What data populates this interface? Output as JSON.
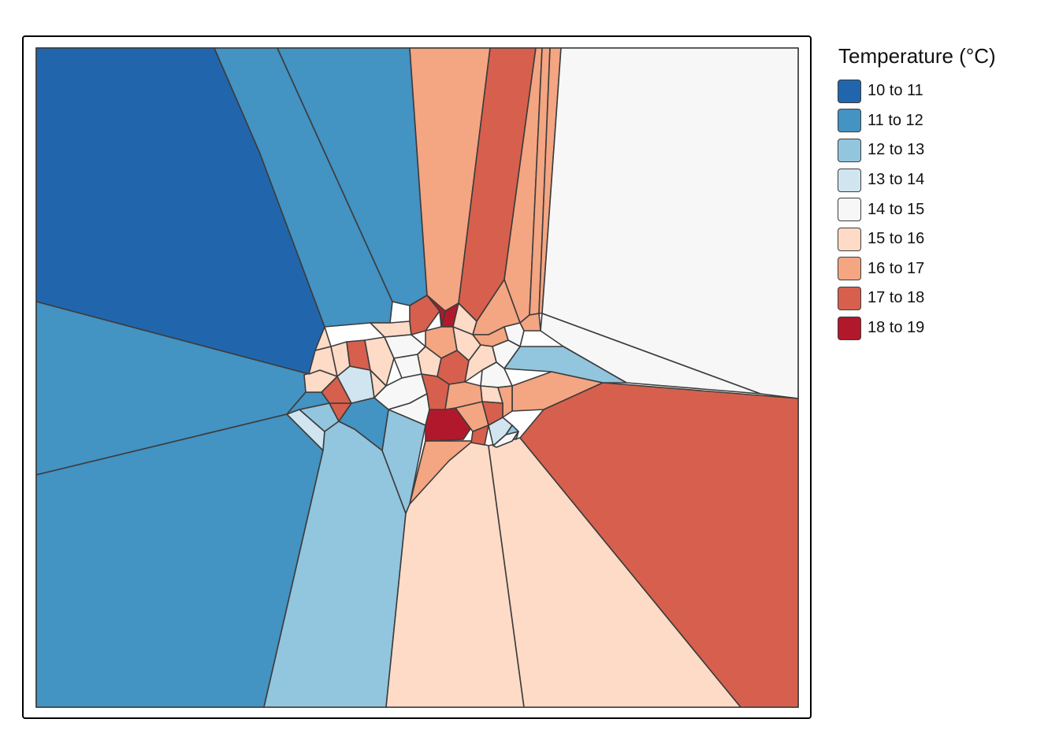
{
  "palette": [
    "#2166ac",
    "#4393c3",
    "#92c5de",
    "#d1e5f0",
    "#f7f7f7",
    "#fddbc7",
    "#f4a582",
    "#d6604d",
    "#b2182b"
  ],
  "legend": {
    "title": "Temperature (°C)",
    "classes": [
      {
        "label": "10 to 11",
        "color": "#2166ac"
      },
      {
        "label": "11 to 12",
        "color": "#4393c3"
      },
      {
        "label": "12 to 13",
        "color": "#92c5de"
      },
      {
        "label": "13 to 14",
        "color": "#d1e5f0"
      },
      {
        "label": "14 to 15",
        "color": "#f7f7f7"
      },
      {
        "label": "15 to 16",
        "color": "#fddbc7"
      },
      {
        "label": "16 to 17",
        "color": "#f4a582"
      },
      {
        "label": "17 to 18",
        "color": "#d6604d"
      },
      {
        "label": "18 to 19",
        "color": "#b2182b"
      }
    ]
  }
}
